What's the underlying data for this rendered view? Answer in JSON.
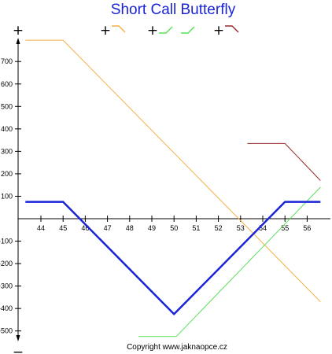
{
  "chart_data": {
    "type": "line",
    "title": "Short Call Butterfly",
    "xlabel": "",
    "ylabel": "",
    "x_ticks": [
      44,
      45,
      46,
      47,
      48,
      49,
      50,
      51,
      52,
      53,
      54,
      55,
      56
    ],
    "y_ticks": [
      700,
      600,
      500,
      400,
      300,
      200,
      100,
      -100,
      -200,
      -300,
      -400,
      -500
    ],
    "xlim": [
      43.3,
      56.8
    ],
    "ylim": [
      -560,
      800
    ],
    "grid": false,
    "legend": "top",
    "series": [
      {
        "color": "#f5b04a",
        "width": 1,
        "points": [
          [
            43.3,
            795
          ],
          [
            45,
            795
          ],
          [
            56.6,
            -370
          ]
        ]
      },
      {
        "color": "#58e058",
        "width": 1,
        "points": [
          [
            48.4,
            -525
          ],
          [
            50.1,
            -525
          ],
          [
            56.6,
            140
          ]
        ]
      },
      {
        "color": "#9a2a2a",
        "width": 1,
        "points": [
          [
            53.3,
            335
          ],
          [
            55,
            335
          ],
          [
            56.6,
            170
          ]
        ]
      },
      {
        "color": "#1a24d6",
        "width": 2.5,
        "points": [
          [
            43.3,
            75
          ],
          [
            45,
            75
          ],
          [
            50,
            -425
          ],
          [
            55,
            75
          ],
          [
            56.6,
            75
          ]
        ]
      }
    ]
  },
  "legend": {
    "items": [
      {
        "sign": "+",
        "color": "#f5b04a",
        "glyph": "long-call-glyph"
      },
      {
        "sign": "+",
        "color": "#58e058",
        "glyph": "short-call-glyph"
      },
      {
        "sign": "",
        "color": "#58e058",
        "glyph": "short-call-glyph"
      },
      {
        "sign": "+",
        "color": "#9a2a2a",
        "glyph": "long-call-glyph"
      }
    ]
  },
  "signs": {
    "top": "+",
    "bottom": "−"
  },
  "copyright": "Copyright www.jaknaopce.cz"
}
